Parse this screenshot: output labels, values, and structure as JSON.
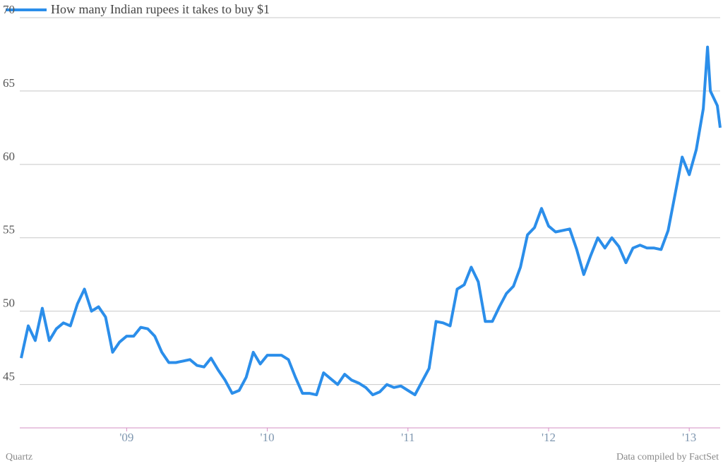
{
  "chart_data": {
    "type": "line",
    "series": [
      {
        "name": "How many Indian rupees it takes to buy $1",
        "color": "#2b8eea",
        "values": [
          46.8,
          49.0,
          48.0,
          50.2,
          48.0,
          48.8,
          49.2,
          49.0,
          50.5,
          51.5,
          50.0,
          50.3,
          49.6,
          47.2,
          47.9,
          48.3,
          48.3,
          48.9,
          48.8,
          48.3,
          47.2,
          46.5,
          46.5,
          46.6,
          46.7,
          46.3,
          46.2,
          46.8,
          46.0,
          45.3,
          44.4,
          44.6,
          45.5,
          47.2,
          46.4,
          47.0,
          47.0,
          47.0,
          46.7,
          45.5,
          44.4,
          44.4,
          44.3,
          45.8,
          45.4,
          45.0,
          45.7,
          45.3,
          45.1,
          44.8,
          44.3,
          44.5,
          45.0,
          44.8,
          44.9,
          44.6,
          44.3,
          45.2,
          46.1,
          49.3,
          49.2,
          49.0,
          51.5,
          51.8,
          53.0,
          52.0,
          49.3,
          49.3,
          50.3,
          51.2,
          51.7,
          53.0,
          55.2,
          55.7,
          57.0,
          55.8,
          55.4,
          55.5,
          55.6,
          54.2,
          52.5,
          53.8,
          55.0,
          54.3,
          55.0,
          54.4,
          53.3,
          54.3,
          54.5,
          54.3,
          54.3,
          54.2,
          55.5,
          58.0,
          60.5,
          59.3,
          61.0,
          63.8,
          68.0,
          65.0,
          64.0,
          62.5
        ]
      }
    ],
    "x": [
      2008.75,
      2008.8,
      2008.85,
      2008.9,
      2008.95,
      2009,
      2009.05,
      2009.1,
      2009.15,
      2009.2,
      2009.25,
      2009.3,
      2009.35,
      2009.4,
      2009.45,
      2009.5,
      2009.55,
      2009.6,
      2009.65,
      2009.7,
      2009.75,
      2009.8,
      2009.85,
      2009.9,
      2009.95,
      2010,
      2010.05,
      2010.1,
      2010.15,
      2010.2,
      2010.25,
      2010.3,
      2010.35,
      2010.4,
      2010.45,
      2010.5,
      2010.55,
      2010.6,
      2010.65,
      2010.7,
      2010.75,
      2010.8,
      2010.85,
      2010.9,
      2010.95,
      2011,
      2011.05,
      2011.1,
      2011.15,
      2011.2,
      2011.25,
      2011.3,
      2011.35,
      2011.4,
      2011.45,
      2011.5,
      2011.55,
      2011.6,
      2011.65,
      2011.7,
      2011.75,
      2011.8,
      2011.85,
      2011.9,
      2011.95,
      2012,
      2012.05,
      2012.1,
      2012.15,
      2012.2,
      2012.25,
      2012.3,
      2012.35,
      2012.4,
      2012.45,
      2012.5,
      2012.55,
      2012.6,
      2012.65,
      2012.7,
      2012.75,
      2012.8,
      2012.85,
      2012.9,
      2012.95,
      2013,
      2013.05,
      2013.1,
      2013.15,
      2013.2,
      2013.25,
      2013.3,
      2013.35,
      2013.4,
      2013.45,
      2013.5,
      2013.55,
      2013.6,
      2013.63,
      2013.65,
      2013.7,
      2013.72
    ],
    "xlim": [
      2008.74,
      2013.72
    ],
    "xticks": [
      {
        "value": 2009.5,
        "label": "'09"
      },
      {
        "value": 2010.5,
        "label": "'10"
      },
      {
        "value": 2011.5,
        "label": "'11"
      },
      {
        "value": 2012.5,
        "label": "'12"
      },
      {
        "value": 2013.5,
        "label": "'13"
      }
    ],
    "ylim": [
      42,
      70
    ],
    "yticks": [
      45,
      50,
      55,
      60,
      65,
      70
    ],
    "grid": true,
    "source": "Data compiled by FactSet",
    "credit": "Quartz"
  }
}
